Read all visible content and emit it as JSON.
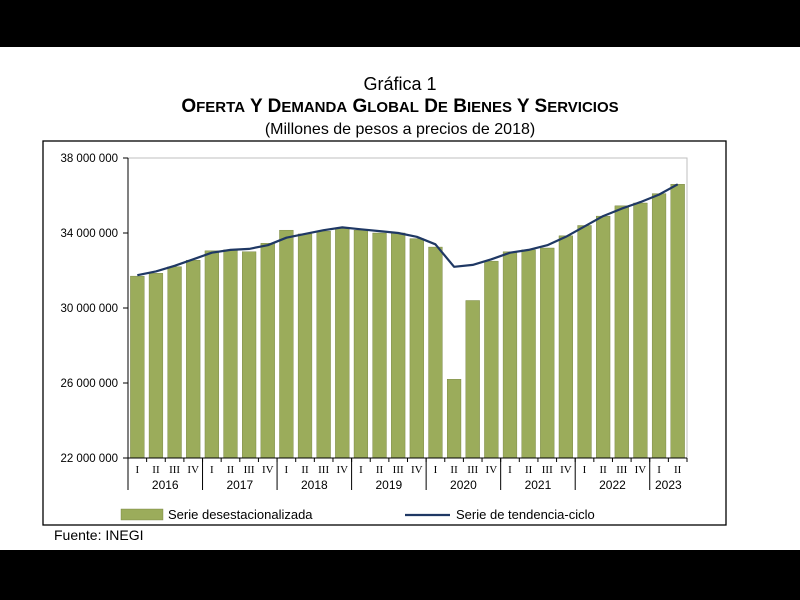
{
  "title": {
    "line1": "Gráfica 1",
    "line2": "Oferta y demanda global de bienes y servicios",
    "line3": "(Millones de pesos a precios de 2018)"
  },
  "source": "Fuente: INEGI",
  "colors": {
    "bar": "#9bac5b",
    "bar_stroke": "#6f7d3a",
    "line": "#1f3864",
    "frame": "#000000",
    "grid": "#d9d9d9"
  },
  "chart_data": {
    "type": "bar",
    "ylim": [
      22000000,
      38000000
    ],
    "yticks": [
      22000000,
      26000000,
      30000000,
      34000000,
      38000000
    ],
    "ytick_labels": [
      "22 000 000",
      "26 000 000",
      "30 000 000",
      "34 000 000",
      "38 000 000"
    ],
    "categories": [
      "I",
      "II",
      "III",
      "IV",
      "I",
      "II",
      "III",
      "IV",
      "I",
      "II",
      "III",
      "IV",
      "I",
      "II",
      "III",
      "IV",
      "I",
      "II",
      "III",
      "IV",
      "I",
      "II",
      "III",
      "IV",
      "I",
      "II",
      "III",
      "IV",
      "I",
      "II"
    ],
    "years": [
      {
        "label": "2016",
        "quarters": 4
      },
      {
        "label": "2017",
        "quarters": 4
      },
      {
        "label": "2018",
        "quarters": 4
      },
      {
        "label": "2019",
        "quarters": 4
      },
      {
        "label": "2020",
        "quarters": 4
      },
      {
        "label": "2021",
        "quarters": 4
      },
      {
        "label": "2022",
        "quarters": 4
      },
      {
        "label": "2023",
        "quarters": 2
      }
    ],
    "series": [
      {
        "name": "Serie desestacionalizada",
        "kind": "bar",
        "values": [
          31700000,
          31850000,
          32200000,
          32550000,
          33050000,
          33100000,
          33000000,
          33450000,
          34150000,
          33950000,
          34100000,
          34250000,
          34150000,
          34000000,
          34000000,
          33700000,
          33250000,
          26200000,
          30400000,
          32500000,
          33000000,
          33100000,
          33200000,
          33850000,
          34400000,
          34900000,
          35450000,
          35600000,
          36100000,
          36600000
        ]
      },
      {
        "name": "Serie de tendencia-ciclo",
        "kind": "line",
        "values": [
          31750000,
          31950000,
          32250000,
          32600000,
          32950000,
          33100000,
          33150000,
          33350000,
          33750000,
          33950000,
          34150000,
          34300000,
          34200000,
          34100000,
          34000000,
          33800000,
          33400000,
          32200000,
          32300000,
          32600000,
          32950000,
          33100000,
          33350000,
          33800000,
          34350000,
          34900000,
          35300000,
          35650000,
          36050000,
          36600000
        ]
      }
    ],
    "legend_position": "bottom"
  }
}
